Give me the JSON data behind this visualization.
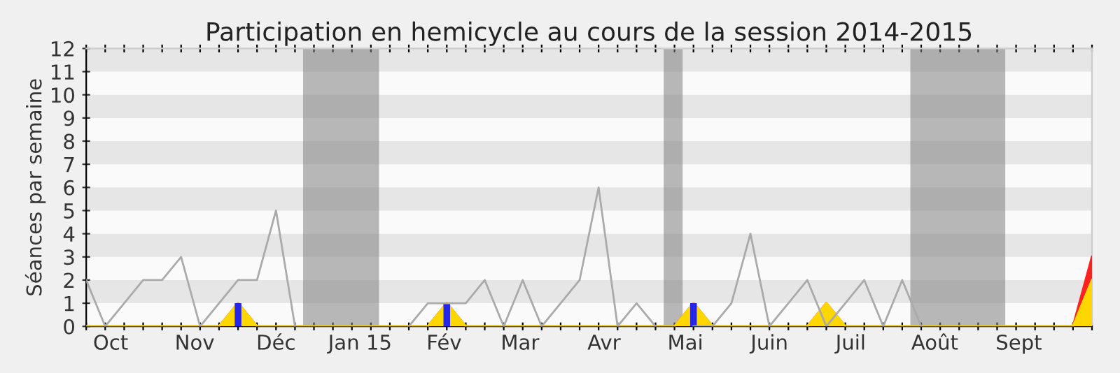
{
  "chart_data": {
    "type": "line",
    "title": "Participation en hemicycle au cours de la session 2014-2015",
    "ylabel": "Séances par semaine",
    "x": [
      "2014-09-22",
      "2014-09-29",
      "2014-10-06",
      "2014-10-13",
      "2014-10-20",
      "2014-10-27",
      "2014-11-03",
      "2014-11-10",
      "2014-11-17",
      "2014-11-24",
      "2014-12-01",
      "2014-12-08",
      "2014-12-15",
      "2014-12-22",
      "2014-12-29",
      "2015-01-05",
      "2015-01-12",
      "2015-01-19",
      "2015-01-26",
      "2015-02-02",
      "2015-02-09",
      "2015-02-16",
      "2015-02-23",
      "2015-03-02",
      "2015-03-09",
      "2015-03-16",
      "2015-03-23",
      "2015-03-30",
      "2015-04-06",
      "2015-04-13",
      "2015-04-20",
      "2015-04-27",
      "2015-05-04",
      "2015-05-11",
      "2015-05-18",
      "2015-05-25",
      "2015-06-01",
      "2015-06-08",
      "2015-06-15",
      "2015-06-22",
      "2015-06-29",
      "2015-07-06",
      "2015-07-13",
      "2015-07-20",
      "2015-07-27",
      "2015-08-03",
      "2015-08-10",
      "2015-08-17",
      "2015-08-24",
      "2015-08-31",
      "2015-09-07",
      "2015-09-14",
      "2015-09-21",
      "2015-09-28"
    ],
    "series": [
      {
        "type": "area",
        "color": "#ff2020",
        "values": [
          0,
          0,
          0,
          0,
          0,
          0,
          0,
          0,
          1,
          0,
          0,
          0,
          0,
          0,
          0,
          0,
          0,
          0,
          0,
          1,
          0,
          0,
          0,
          0,
          0,
          0,
          0,
          0,
          0,
          0,
          0,
          0,
          1,
          0,
          0,
          0,
          0,
          0,
          0,
          1,
          0,
          0,
          0,
          0,
          0,
          0,
          0,
          0,
          0,
          0,
          0,
          0,
          0,
          3
        ]
      },
      {
        "type": "area",
        "color": "#ffd700",
        "values": [
          0,
          0,
          0,
          0,
          0,
          0,
          0,
          0,
          1,
          0,
          0,
          0,
          0,
          0,
          0,
          0,
          0,
          0,
          0,
          1,
          0,
          0,
          0,
          0,
          0,
          0,
          0,
          0,
          0,
          0,
          0,
          0,
          1,
          0,
          0,
          0,
          0,
          0,
          0,
          1,
          0,
          0,
          0,
          0,
          0,
          0,
          0,
          0,
          0,
          0,
          0,
          0,
          0,
          2
        ]
      },
      {
        "type": "bar",
        "color": "#2626e6",
        "values": [
          0,
          0,
          0,
          0,
          0,
          0,
          0,
          0,
          1,
          0,
          0,
          0,
          0,
          0,
          0,
          0,
          0,
          0,
          0,
          1,
          0,
          0,
          0,
          0,
          0,
          0,
          0,
          0,
          0,
          0,
          0,
          0,
          1,
          0,
          0,
          0,
          0,
          0,
          0,
          0,
          0,
          0,
          0,
          0,
          0,
          0,
          0,
          0,
          0,
          0,
          0,
          0,
          0,
          0
        ]
      },
      {
        "color": "#aaaaaa",
        "values": [
          2,
          0,
          1,
          2,
          2,
          3,
          0,
          1,
          2,
          2,
          5,
          0,
          null,
          null,
          null,
          null,
          null,
          0,
          1,
          1,
          1,
          2,
          0,
          2,
          0,
          1,
          2,
          6,
          0,
          1,
          0,
          null,
          0,
          0,
          1,
          4,
          0,
          1,
          2,
          0,
          1,
          2,
          0,
          2,
          0,
          null,
          null,
          null,
          null,
          null,
          null,
          null,
          null,
          null
        ]
      }
    ],
    "bands": [
      {
        "axis": "x",
        "from": "2014-12-11",
        "to": "2015-01-08",
        "color": "#808080"
      },
      {
        "axis": "x",
        "from": "2015-04-23",
        "to": "2015-04-30",
        "color": "#808080"
      },
      {
        "axis": "x",
        "from": "2015-07-23",
        "to": "2015-08-27",
        "color": "#808080"
      }
    ],
    "xlim": [
      "2014-09-22",
      "2015-09-28"
    ],
    "xticks": [
      {
        "value": "2014-10-01",
        "label": "Oct"
      },
      {
        "value": "2014-11-01",
        "label": "Nov"
      },
      {
        "value": "2014-12-01",
        "label": "Déc"
      },
      {
        "value": "2015-01-01",
        "label": "Jan 15"
      },
      {
        "value": "2015-02-01",
        "label": "Fév"
      },
      {
        "value": "2015-03-01",
        "label": "Mar"
      },
      {
        "value": "2015-04-01",
        "label": "Avr"
      },
      {
        "value": "2015-05-01",
        "label": "Mai"
      },
      {
        "value": "2015-06-01",
        "label": "Juin"
      },
      {
        "value": "2015-07-01",
        "label": "Juil"
      },
      {
        "value": "2015-08-01",
        "label": "Août"
      },
      {
        "value": "2015-09-01",
        "label": "Sept"
      }
    ],
    "ylim": [
      0,
      12
    ],
    "yticks": [
      0,
      1,
      2,
      3,
      4,
      5,
      6,
      7,
      8,
      9,
      10,
      11,
      12
    ]
  }
}
